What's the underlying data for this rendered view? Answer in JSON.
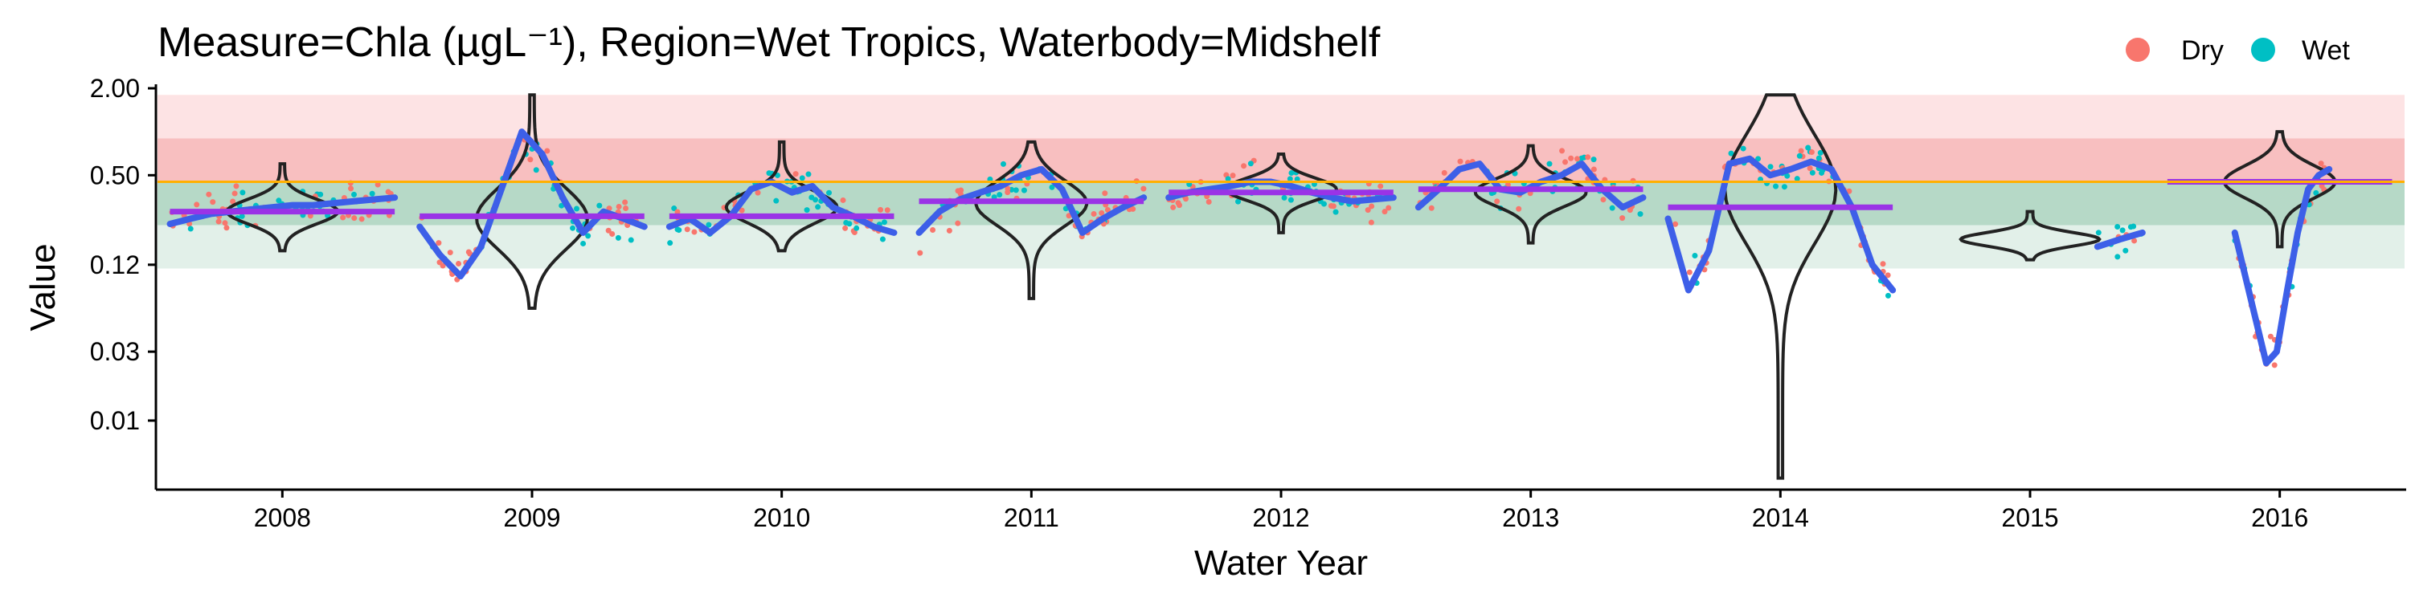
{
  "chart_data": {
    "type": "scatter",
    "title": "Measure=Chla (µgL⁻¹), Region=Wet Tropics, Waterbody=Midshelf",
    "xlabel": "Water Year",
    "ylabel": "Value",
    "y_scale": "log",
    "ylim": [
      0.0035,
      2.0
    ],
    "y_ticks": [
      {
        "value": 2.0,
        "label": "2.00"
      },
      {
        "value": 0.5,
        "label": "0.50"
      },
      {
        "value": 0.12,
        "label": "0.12"
      },
      {
        "value": 0.03,
        "label": "0.03"
      },
      {
        "value": 0.01,
        "label": "0.01"
      }
    ],
    "categories": [
      "2008",
      "2009",
      "2010",
      "2011",
      "2012",
      "2013",
      "2014",
      "2015",
      "2016"
    ],
    "legend": {
      "position": "top-right",
      "entries": [
        {
          "label": "Dry",
          "color": "#F8766D"
        },
        {
          "label": "Wet",
          "color": "#00BFC4"
        }
      ]
    },
    "guideline": {
      "value": 0.45,
      "color": "#FFB000"
    },
    "bands": [
      {
        "from": 0.9,
        "to": 1.8,
        "color": "#FDE3E4"
      },
      {
        "from": 0.45,
        "to": 0.9,
        "color": "#F8BFC0"
      },
      {
        "from": 0.225,
        "to": 0.45,
        "color": "#B6D9C7"
      },
      {
        "from": 0.113,
        "to": 0.225,
        "color": "#E2F0E9"
      }
    ],
    "series": [
      {
        "name": "Dry",
        "color": "#F8766D"
      },
      {
        "name": "Wet",
        "color": "#00BFC4"
      }
    ],
    "annual_mean": [
      0.28,
      0.26,
      0.26,
      0.33,
      0.38,
      0.4,
      0.3,
      null,
      0.45
    ],
    "violins": [
      {
        "median": 0.28,
        "min": 0.15,
        "max": 0.6
      },
      {
        "median": 0.25,
        "min": 0.06,
        "max": 1.8
      },
      {
        "median": 0.3,
        "min": 0.15,
        "max": 0.85
      },
      {
        "median": 0.32,
        "min": 0.07,
        "max": 0.85
      },
      {
        "median": 0.4,
        "min": 0.2,
        "max": 0.7
      },
      {
        "median": 0.38,
        "min": 0.17,
        "max": 0.8
      },
      {
        "median": 0.4,
        "min": 0.004,
        "max": 1.8
      },
      {
        "median": 0.18,
        "min": 0.13,
        "max": 0.28
      },
      {
        "median": 0.45,
        "min": 0.16,
        "max": 1.0
      }
    ],
    "trend": [
      {
        "year": 2008,
        "values": [
          0.23,
          0.25,
          0.27,
          0.28,
          0.29,
          0.3,
          0.31,
          0.31,
          0.32,
          0.33,
          0.34,
          0.35
        ]
      },
      {
        "year": 2009,
        "values": [
          0.22,
          0.14,
          0.1,
          0.16,
          0.4,
          1.0,
          0.7,
          0.35,
          0.2,
          0.28,
          0.25,
          0.22
        ]
      },
      {
        "year": 2010,
        "values": [
          0.22,
          0.25,
          0.2,
          0.26,
          0.4,
          0.45,
          0.38,
          0.42,
          0.3,
          0.26,
          0.22,
          0.2
        ]
      },
      {
        "year": 2011,
        "values": [
          0.2,
          0.28,
          0.34,
          0.38,
          0.42,
          0.5,
          0.55,
          0.4,
          0.2,
          0.25,
          0.3,
          0.35
        ]
      },
      {
        "year": 2012,
        "values": [
          0.35,
          0.38,
          0.4,
          0.42,
          0.45,
          0.45,
          0.42,
          0.38,
          0.35,
          0.33,
          0.34,
          0.35
        ]
      },
      {
        "year": 2013,
        "values": [
          0.3,
          0.4,
          0.55,
          0.6,
          0.4,
          0.38,
          0.45,
          0.5,
          0.6,
          0.4,
          0.3,
          0.35
        ]
      },
      {
        "year": 2014,
        "values": [
          0.25,
          0.08,
          0.15,
          0.6,
          0.65,
          0.5,
          0.55,
          0.62,
          0.55,
          0.3,
          0.12,
          0.08
        ]
      },
      {
        "year": 2015,
        "values": [
          0.16,
          0.18,
          0.2
        ]
      },
      {
        "year": 2016,
        "values": [
          0.2,
          0.1,
          0.05,
          0.025,
          0.03,
          0.08,
          0.2,
          0.4,
          0.5,
          0.55
        ]
      }
    ]
  }
}
